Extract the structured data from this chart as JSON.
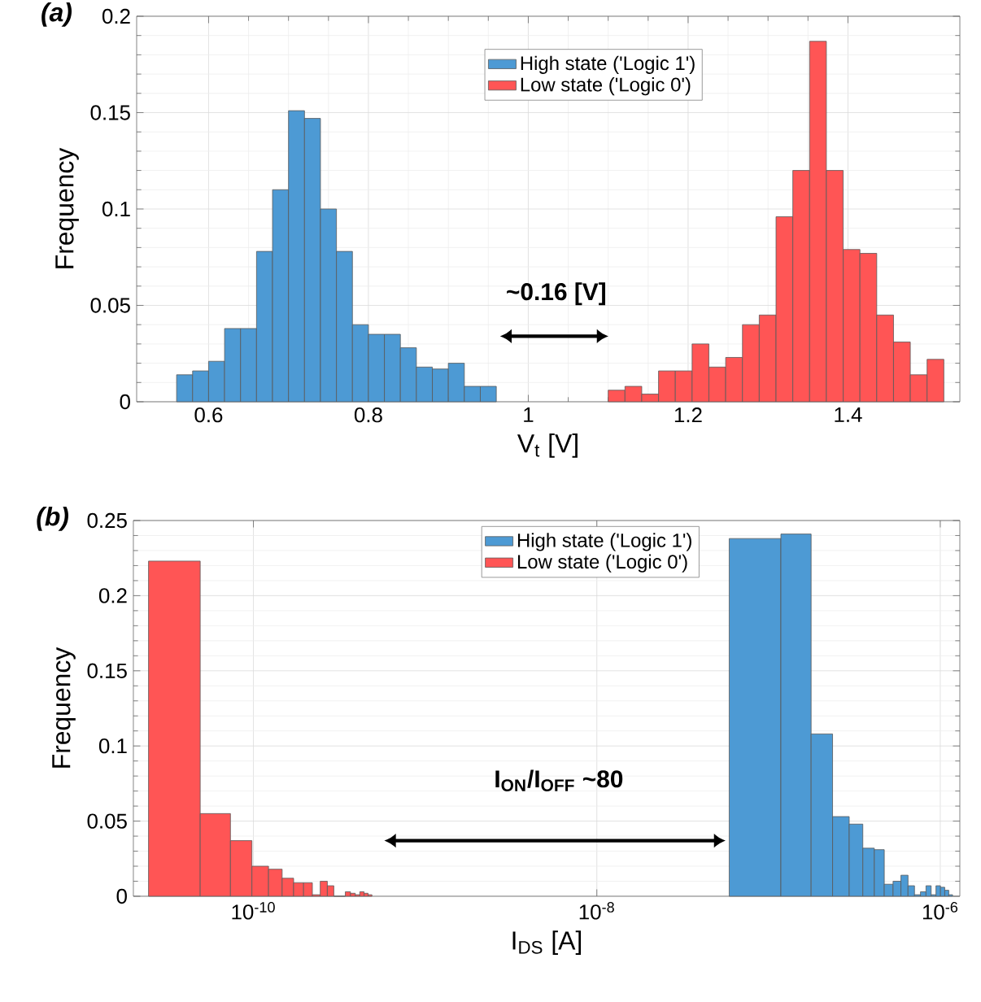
{
  "chart_data": [
    {
      "type": "histogram",
      "title": "(a)",
      "xlabel": "V$_{t}$ [V]",
      "ylabel": "Frequency",
      "xlim": [
        0.51,
        1.54
      ],
      "ylim": [
        0,
        0.2
      ],
      "xticks": [
        0.6,
        0.8,
        1,
        1.2,
        1.4
      ],
      "yticks": [
        0,
        0.05,
        0.1,
        0.15,
        0.2
      ],
      "grid": true,
      "legend": "top",
      "annotations": [
        "~0.16 [V]"
      ],
      "bins": [
        0.56,
        0.58,
        0.6,
        0.62,
        0.64,
        0.66,
        0.68,
        0.7,
        0.72,
        0.74,
        0.76,
        0.78,
        0.8,
        0.82,
        0.84,
        0.86,
        0.88,
        0.9,
        0.92,
        0.94,
        0.96,
        1.1,
        1.121,
        1.142,
        1.163,
        1.184,
        1.205,
        1.226,
        1.247,
        1.268,
        1.289,
        1.31,
        1.331,
        1.352,
        1.373,
        1.394,
        1.415,
        1.436,
        1.457,
        1.478,
        1.499,
        1.52
      ],
      "series": [
        {
          "name": "High state ('Logic 1')",
          "color": "#4d9ad4",
          "values": [
            0.014,
            0.016,
            0.021,
            0.038,
            0.038,
            0.078,
            0.11,
            0.151,
            0.147,
            0.1,
            0.078,
            0.04,
            0.035,
            0.035,
            0.028,
            0.018,
            0.017,
            0.02,
            0.008,
            0.008,
            null,
            null,
            null,
            null,
            null,
            null,
            null,
            null,
            null,
            null,
            null,
            null,
            null,
            null,
            null,
            null,
            null,
            null,
            null,
            null,
            null
          ]
        },
        {
          "name": "Low state ('Logic 0')",
          "color": "#ff5555",
          "values": [
            null,
            null,
            null,
            null,
            null,
            null,
            null,
            null,
            null,
            null,
            null,
            null,
            null,
            null,
            null,
            null,
            null,
            null,
            null,
            null,
            null,
            0.006,
            0.008,
            0.004,
            0.016,
            0.016,
            0.03,
            0.018,
            0.023,
            0.04,
            0.045,
            0.096,
            0.12,
            0.187,
            0.12,
            0.079,
            0.077,
            0.045,
            0.031,
            0.014,
            0.022
          ]
        }
      ]
    },
    {
      "type": "histogram",
      "title": "(b)",
      "xlabel": "I$_{DS}$ [A]",
      "ylabel": "Frequency",
      "log": "x",
      "xlim": [
        2e-11,
        1.3e-06
      ],
      "ylim": [
        0,
        0.25
      ],
      "xticks": [
        {
          "value": 1e-10,
          "label": "10$^{-10}$"
        },
        {
          "value": 1e-08,
          "label": "10$^{-8}$"
        },
        {
          "value": 1e-06,
          "label": "10$^{-6}$"
        }
      ],
      "yticks": [
        0,
        0.05,
        0.1,
        0.15,
        0.2,
        0.25
      ],
      "grid": true,
      "legend": "top",
      "annotations": [
        "I$_{ON}$/I$_{OFF}$ ~80"
      ],
      "bins": [
        2.45e-11,
        4.9e-11,
        7.35e-11,
        9.8e-11,
        1.225e-10,
        1.47e-10,
        1.715e-10,
        1.96e-10,
        2.205e-10,
        2.45e-10,
        2.695e-10,
        2.94e-10,
        3.43e-10,
        3.675e-10,
        3.92e-10,
        4.165e-10,
        4.41e-10,
        4.655e-10,
        4.9e-10,
        5.9e-08,
        1.18e-07,
        1.77e-07,
        2.36e-07,
        2.95e-07,
        3.54e-07,
        4.13e-07,
        4.72e-07,
        5.31e-07,
        5.9e-07,
        6.49e-07,
        7.08e-07,
        7.67e-07,
        8.26e-07,
        8.85e-07,
        9.44e-07,
        1.003e-06,
        1.062e-06,
        1.121e-06,
        1.18e-06
      ],
      "series": [
        {
          "name": "High state ('Logic 1')",
          "color": "#4d9ad4",
          "values": [
            null,
            null,
            null,
            null,
            null,
            null,
            null,
            null,
            null,
            null,
            null,
            null,
            null,
            null,
            null,
            null,
            null,
            null,
            null,
            0.238,
            0.241,
            0.108,
            0.053,
            0.048,
            0.032,
            0.031,
            0.008,
            0.01,
            0.014,
            0.007,
            0.001,
            0.003,
            0.007,
            0.001,
            0.007,
            0.006,
            0.004,
            0.001
          ]
        },
        {
          "name": "Low state ('Logic 0')",
          "color": "#ff5555",
          "values": [
            0.223,
            0.055,
            0.037,
            0.02,
            0.018,
            0.012,
            0.009,
            0.009,
            0.001,
            0.01,
            0.007,
            0,
            0.003,
            0.002,
            0.001,
            0.003,
            0.002,
            0.001,
            null,
            null,
            null,
            null,
            null,
            null,
            null,
            null,
            null,
            null,
            null,
            null,
            null,
            null,
            null,
            null,
            null,
            null,
            null,
            null
          ]
        }
      ]
    }
  ]
}
